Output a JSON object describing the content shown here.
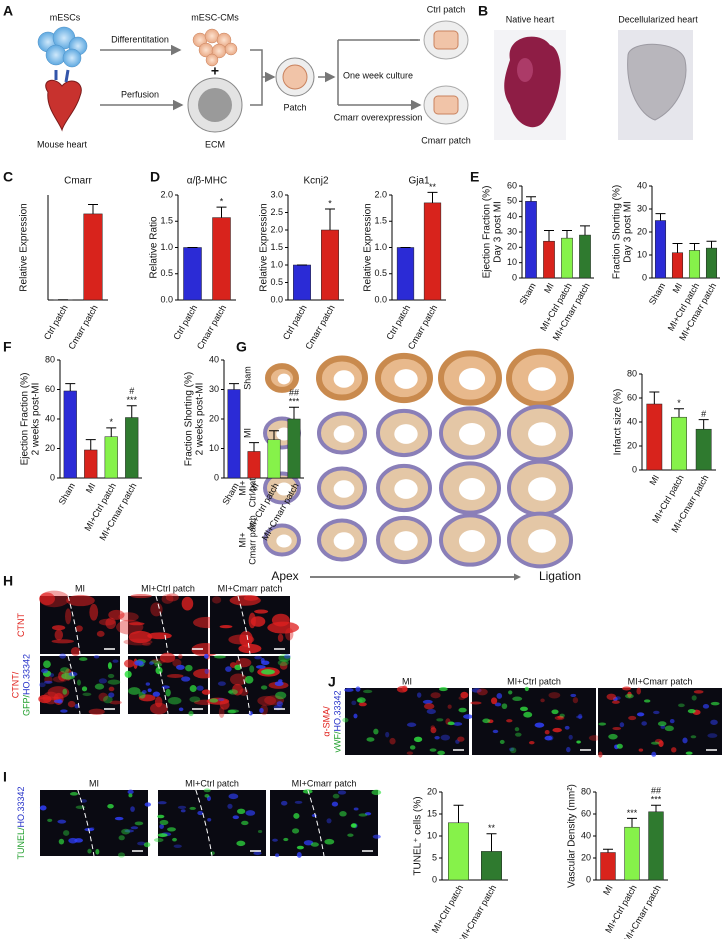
{
  "panel_labels": [
    "A",
    "B",
    "C",
    "D",
    "E",
    "F",
    "G",
    "H",
    "J",
    "I"
  ],
  "schematic": {
    "mescs": "mESCs",
    "differentiation": "Differentitation",
    "cms": "mESC-CMs",
    "plus": "+",
    "mouse_heart": "Mouse heart",
    "perfusion": "Perfusion",
    "ecm": "ECM",
    "patch": "Patch",
    "culture": "One week culture",
    "ctrl_patch": "Ctrl patch",
    "overexpression": "Cmarr overexpression",
    "cmarr_patch": "Cmarr patch"
  },
  "heart_images": {
    "native": "Native heart",
    "decellularized": "Decellularized heart"
  },
  "histology_G": {
    "rows": [
      [
        "Sham"
      ],
      [
        "MI"
      ],
      [
        "MI+",
        "Ctrl patch"
      ],
      [
        "MI+",
        "Cmarr patch"
      ]
    ],
    "apex": "Apex",
    "ligation": "Ligation"
  },
  "microscopy_H": {
    "columns": [
      "MI",
      "MI+Ctrl patch",
      "MI+Cmarr patch"
    ],
    "rows": [
      [
        [
          {
            "text": "CTNT",
            "color": "#e0201b"
          }
        ]
      ],
      [
        [
          {
            "text": "CTNT/",
            "color": "#e0201b"
          }
        ],
        [
          {
            "text": "GFP/",
            "color": "#1e9e2a"
          },
          {
            "text": "HO.33342",
            "color": "#2430c8"
          }
        ]
      ]
    ]
  },
  "microscopy_J": {
    "columns": [
      "MI",
      "MI+Ctrl patch",
      "MI+Cmarr patch"
    ],
    "rows": [
      [
        [
          {
            "text": "α-SMA/",
            "color": "#e0201b"
          }
        ],
        [
          {
            "text": "vWF/",
            "color": "#1e9e2a"
          },
          {
            "text": "HO.33342",
            "color": "#2430c8"
          }
        ]
      ]
    ]
  },
  "microscopy_I": {
    "columns": [
      "MI",
      "MI+Ctrl patch",
      "MI+Cmarr patch"
    ],
    "rows": [
      [
        [
          {
            "text": "TUNEL/",
            "color": "#1e9e2a"
          },
          {
            "text": "HO.33342",
            "color": "#2430c8"
          }
        ]
      ]
    ]
  },
  "chart_data": [
    {
      "type": "bar",
      "title": "Cmarr",
      "ylabel": [
        "Relative Expression"
      ],
      "categories": [
        "Ctrl patch",
        "Cmarr patch"
      ],
      "values": [
        1,
        410
      ],
      "errors": [
        0,
        45
      ],
      "colors": [
        "#2b2bd6",
        "#d8231c"
      ],
      "ylim": [
        0,
        500
      ],
      "yticks": []
    },
    {
      "type": "bar",
      "title": "α/β-MHC",
      "ylabel": [
        "Relative Ratio"
      ],
      "categories": [
        "Ctrl patch",
        "Cmarr patch"
      ],
      "values": [
        1,
        1.57
      ],
      "errors": [
        0,
        0.2
      ],
      "colors": [
        "#2b2bd6",
        "#d8231c"
      ],
      "ylim": [
        0,
        2
      ],
      "yticks": [
        {
          "value": 0,
          "label": "0.0"
        },
        0.5,
        {
          "value": 1,
          "label": "1.0"
        },
        1.5,
        {
          "value": 2,
          "label": "2.0"
        }
      ],
      "annotations": [
        null,
        [
          "*"
        ]
      ]
    },
    {
      "type": "bar",
      "title": "Kcnj2",
      "ylabel": [
        "Relative Expression"
      ],
      "categories": [
        "Ctrl patch",
        "Cmarr patch"
      ],
      "values": [
        1,
        2.0
      ],
      "errors": [
        0,
        0.6
      ],
      "colors": [
        "#2b2bd6",
        "#d8231c"
      ],
      "ylim": [
        0,
        3
      ],
      "yticks": [
        {
          "value": 0,
          "label": "0.0"
        },
        0.5,
        {
          "value": 1,
          "label": "1.0"
        },
        1.5,
        {
          "value": 2,
          "label": "2.0"
        },
        2.5,
        {
          "value": 3,
          "label": "3.0"
        }
      ],
      "annotations": [
        null,
        [
          "*"
        ]
      ]
    },
    {
      "type": "bar",
      "title": "Gja1",
      "ylabel": [
        "Relative Expression"
      ],
      "categories": [
        "Ctrl patch",
        "Cmarr patch"
      ],
      "values": [
        1,
        1.85
      ],
      "errors": [
        0,
        0.2
      ],
      "colors": [
        "#2b2bd6",
        "#d8231c"
      ],
      "ylim": [
        0,
        2
      ],
      "yticks": [
        {
          "value": 0,
          "label": "0.0"
        },
        0.5,
        {
          "value": 1,
          "label": "1.0"
        },
        1.5,
        {
          "value": 2,
          "label": "2.0"
        }
      ],
      "annotations": [
        null,
        [
          "**"
        ]
      ]
    },
    {
      "type": "bar",
      "ylabel": [
        "Ejection Fraction (%)",
        "Day 3 post MI"
      ],
      "categories": [
        "Sham",
        "MI",
        "MI+Ctrl patch",
        "MI+Cmarr patch"
      ],
      "values": [
        50,
        24,
        26,
        28
      ],
      "errors": [
        3,
        7,
        5,
        6
      ],
      "colors": [
        "#2b2bd6",
        "#d8231c",
        "#86f24a",
        "#2f7a2f"
      ],
      "ylim": [
        0,
        60
      ],
      "yticks": [
        0,
        10,
        20,
        30,
        40,
        50,
        60
      ]
    },
    {
      "type": "bar",
      "ylabel": [
        "Fraction Shorting (%)",
        "Day 3 post MI"
      ],
      "categories": [
        "Sham",
        "MI",
        "MI+Ctrl patch",
        "MI+Cmarr patch"
      ],
      "values": [
        25,
        11,
        12,
        13
      ],
      "errors": [
        3,
        4,
        3,
        3
      ],
      "colors": [
        "#2b2bd6",
        "#d8231c",
        "#86f24a",
        "#2f7a2f"
      ],
      "ylim": [
        0,
        40
      ],
      "yticks": [
        0,
        10,
        20,
        30,
        40
      ]
    },
    {
      "type": "bar",
      "ylabel": [
        "Ejection Fraction (%)",
        "2 weeks post-MI"
      ],
      "categories": [
        "Sham",
        "MI",
        "MI+Ctrl patch",
        "MI+Cmarr patch"
      ],
      "values": [
        59,
        19,
        28,
        41
      ],
      "errors": [
        5,
        7,
        6,
        8
      ],
      "colors": [
        "#2b2bd6",
        "#d8231c",
        "#86f24a",
        "#2f7a2f"
      ],
      "ylim": [
        0,
        80
      ],
      "yticks": [
        0,
        20,
        40,
        60,
        80
      ],
      "annotations": [
        null,
        null,
        [
          "*"
        ],
        [
          "#",
          "***"
        ]
      ]
    },
    {
      "type": "bar",
      "ylabel": [
        "Fraction Shorting (%)",
        "2 weeks post-MI"
      ],
      "categories": [
        "Sham",
        "MI",
        "MI+Ctrl patch",
        "MI+Cmarr patch"
      ],
      "values": [
        30,
        9,
        13,
        20
      ],
      "errors": [
        2,
        3,
        3,
        4
      ],
      "colors": [
        "#2b2bd6",
        "#d8231c",
        "#86f24a",
        "#2f7a2f"
      ],
      "ylim": [
        0,
        40
      ],
      "yticks": [
        0,
        10,
        20,
        30,
        40
      ],
      "annotations": [
        null,
        null,
        null,
        [
          "##",
          "***"
        ]
      ]
    },
    {
      "type": "bar",
      "ylabel": [
        "Infarct size (%)"
      ],
      "categories": [
        "MI",
        "MI+Ctrl patch",
        "MI+Cmarr patch"
      ],
      "values": [
        55,
        44,
        34
      ],
      "errors": [
        10,
        7,
        8
      ],
      "colors": [
        "#d8231c",
        "#86f24a",
        "#2f7a2f"
      ],
      "ylim": [
        0,
        80
      ],
      "yticks": [
        0,
        20,
        40,
        60,
        80
      ],
      "annotations": [
        null,
        [
          "*"
        ],
        [
          "#"
        ]
      ]
    },
    {
      "type": "bar",
      "ylabel": [
        "TUNEL⁺ cells (%)"
      ],
      "categories": [
        "MI+Ctrl patch",
        "MI+Cmarr patch"
      ],
      "values": [
        13,
        6.5
      ],
      "errors": [
        4,
        4
      ],
      "colors": [
        "#86f24a",
        "#2f7a2f"
      ],
      "ylim": [
        0,
        20
      ],
      "yticks": [
        0,
        5,
        10,
        15,
        20
      ],
      "annotations": [
        null,
        [
          "**"
        ]
      ]
    },
    {
      "type": "bar",
      "ylabel": [
        "Vascular Density (mm²)"
      ],
      "categories": [
        "MI",
        "MI+Ctrl patch",
        "MI+Cmarr patch"
      ],
      "values": [
        25,
        48,
        62
      ],
      "errors": [
        3,
        8,
        6
      ],
      "colors": [
        "#d8231c",
        "#86f24a",
        "#2f7a2f"
      ],
      "ylim": [
        0,
        80
      ],
      "yticks": [
        0,
        20,
        40,
        60,
        80
      ],
      "annotations": [
        null,
        [
          "***"
        ],
        [
          "##",
          "***"
        ]
      ]
    }
  ]
}
